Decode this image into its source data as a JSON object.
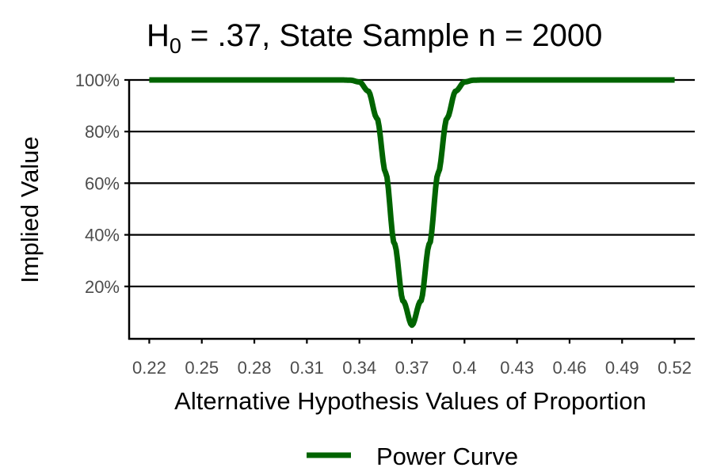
{
  "chart_data": {
    "type": "line",
    "title": {
      "main": "H",
      "subscript": "0",
      "rest": " = .37, State Sample n = 2000"
    },
    "xlabel": "Alternative Hypothesis Values of Proportion",
    "ylabel": "Implied Value",
    "xlim": [
      0.2085,
      0.5315
    ],
    "ylim": [
      -0.003,
      1.003
    ],
    "x_ticks": [
      0.22,
      0.25,
      0.28,
      0.31,
      0.34,
      0.37,
      0.4,
      0.43,
      0.46,
      0.49,
      0.52
    ],
    "x_tick_labels": [
      "0.22",
      "0.25",
      "0.28",
      "0.31",
      "0.34",
      "0.37",
      "0.4",
      "0.43",
      "0.46",
      "0.49",
      "0.52"
    ],
    "y_ticks": [
      0.2,
      0.4,
      0.6,
      0.8,
      1.0
    ],
    "y_tick_labels": [
      "20%",
      "40%",
      "60%",
      "80%",
      "100%"
    ],
    "grid": "horizontal major lines",
    "legend_position": "bottom",
    "series": [
      {
        "name": "Power Curve",
        "color": "#006400",
        "x": [
          0.22,
          0.25,
          0.28,
          0.31,
          0.33,
          0.335,
          0.34,
          0.345,
          0.35,
          0.355,
          0.36,
          0.365,
          0.37,
          0.375,
          0.38,
          0.385,
          0.39,
          0.395,
          0.4,
          0.405,
          0.41,
          0.43,
          0.46,
          0.49,
          0.52
        ],
        "y": [
          1.0,
          1.0,
          1.0,
          1.0,
          1.0,
          0.999,
          0.992,
          0.957,
          0.852,
          0.64,
          0.365,
          0.143,
          0.05,
          0.143,
          0.365,
          0.64,
          0.852,
          0.957,
          0.992,
          0.999,
          1.0,
          1.0,
          1.0,
          1.0,
          1.0
        ]
      }
    ]
  }
}
